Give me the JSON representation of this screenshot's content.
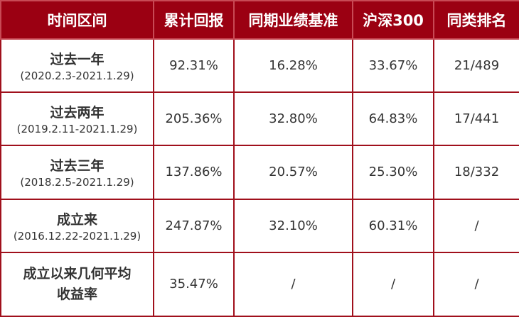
{
  "colors": {
    "header_bg": "#9b0012",
    "border": "#a0101c",
    "text": "#333333"
  },
  "headers": [
    "时间区间",
    "累计回报",
    "同期业绩基准",
    "沪深300",
    "同类排名"
  ],
  "rows": [
    {
      "name": "过去一年",
      "range": "(2020.2.3-2021.1.29)",
      "cumulative": "92.31%",
      "benchmark": "16.28%",
      "csi300": "33.67%",
      "rank": "21/489"
    },
    {
      "name": "过去两年",
      "range": "(2019.2.11-2021.1.29)",
      "cumulative": "205.36%",
      "benchmark": "32.80%",
      "csi300": "64.83%",
      "rank": "17/441"
    },
    {
      "name": "过去三年",
      "range": "(2018.2.5-2021.1.29)",
      "cumulative": "137.86%",
      "benchmark": "20.57%",
      "csi300": "25.30%",
      "rank": "18/332"
    },
    {
      "name": "成立来",
      "range": "(2016.12.22-2021.1.29)",
      "cumulative": "247.87%",
      "benchmark": "32.10%",
      "csi300": "60.31%",
      "rank": "/"
    },
    {
      "name": "成立以来几何平均\n收益率",
      "range": "",
      "cumulative": "35.47%",
      "benchmark": "/",
      "csi300": "/",
      "rank": "/"
    }
  ]
}
